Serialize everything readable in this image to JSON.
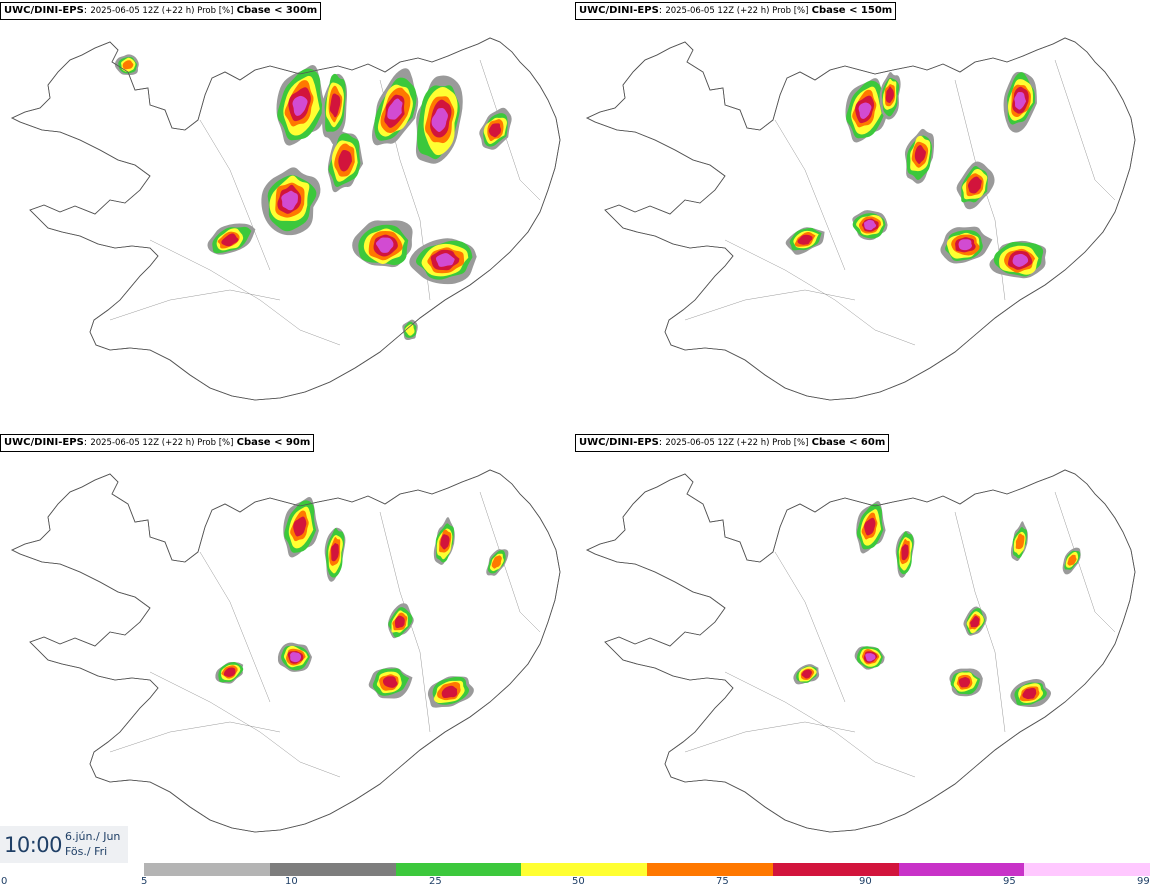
{
  "panels": [
    {
      "model": "UWC/DINI-EPS",
      "meta": "2025-06-05 12Z (+22 h) Prob [%]",
      "variable": "Cbase < 300m"
    },
    {
      "model": "UWC/DINI-EPS",
      "meta": "2025-06-05 12Z (+22 h) Prob [%]",
      "variable": "Cbase < 150m"
    },
    {
      "model": "UWC/DINI-EPS",
      "meta": "2025-06-05 12Z (+22 h) Prob [%]",
      "variable": "Cbase < 90m"
    },
    {
      "model": "UWC/DINI-EPS",
      "meta": "2025-06-05 12Z (+22 h) Prob [%]",
      "variable": "Cbase < 60m"
    }
  ],
  "valid_time": {
    "time": "10:00",
    "date_line1": "6.jún./ Jun",
    "date_line2": "Fös./ Fri"
  },
  "legend": {
    "ticks": [
      "0",
      "5",
      "10",
      "25",
      "50",
      "75",
      "90",
      "95",
      "99"
    ],
    "colors": [
      "#b4b4b4",
      "#7d7d7d",
      "#3cc83c",
      "#ffff32",
      "#ff7800",
      "#d2143c",
      "#c832c8",
      "#ffc8ff"
    ]
  },
  "map_colors": {
    "coast": "#555555",
    "fill_levels": [
      "#9a9a9a",
      "#3cc83c",
      "#ffff32",
      "#ff7800",
      "#d2143c",
      "#d24bd2",
      "#f5b4f0"
    ]
  }
}
